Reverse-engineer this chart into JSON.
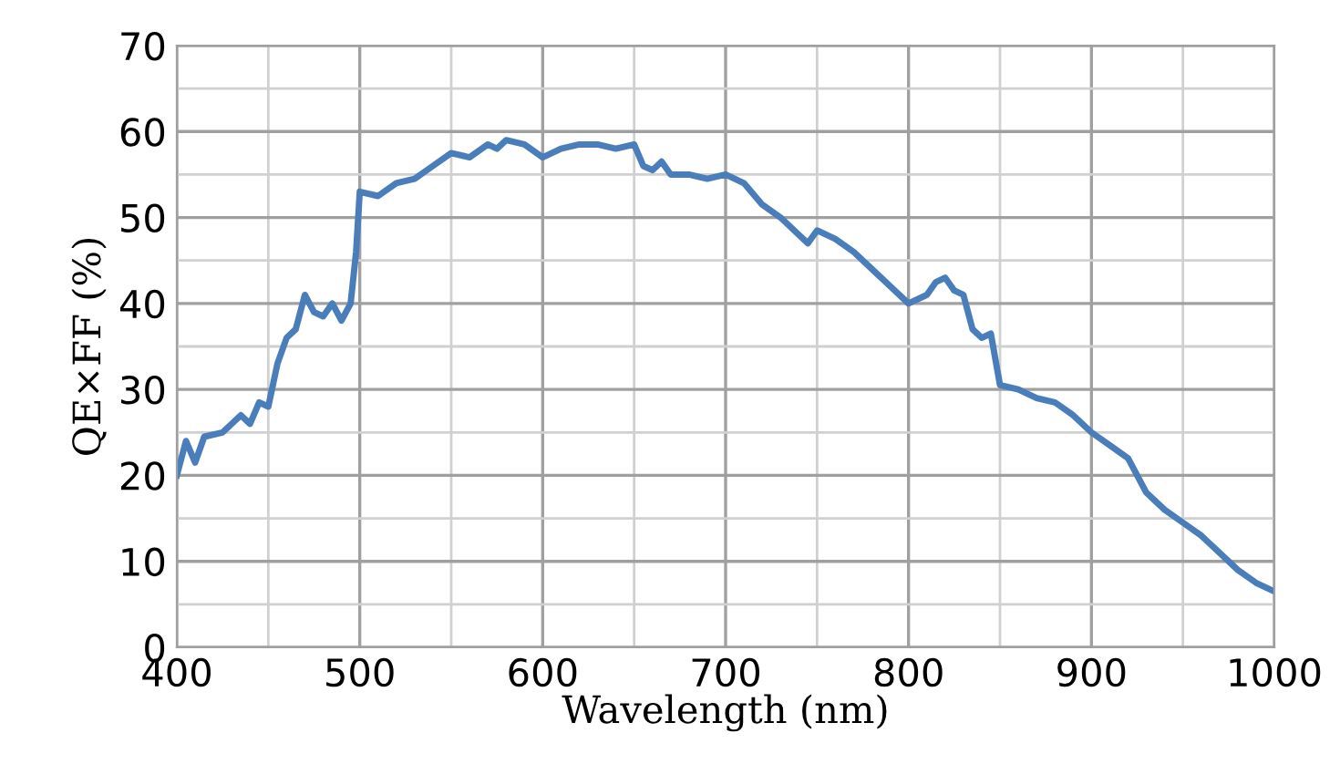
{
  "chart_data": {
    "type": "line",
    "xlabel": "Wavelength (nm)",
    "ylabel": "QE×FF (%)",
    "xlim": [
      400,
      1000
    ],
    "xticks": [
      400,
      500,
      600,
      700,
      800,
      900,
      1000
    ],
    "ylim": [
      0,
      70
    ],
    "yticks": [
      0,
      10,
      20,
      30,
      40,
      50,
      60,
      70
    ],
    "grid": true,
    "series": [
      {
        "color": "#4a7ebb",
        "x": [
          400,
          405,
          410,
          415,
          425,
          435,
          440,
          445,
          450,
          455,
          460,
          465,
          470,
          475,
          480,
          485,
          490,
          495,
          498,
          500,
          510,
          520,
          530,
          540,
          550,
          560,
          570,
          575,
          580,
          590,
          600,
          610,
          620,
          630,
          640,
          650,
          655,
          660,
          665,
          670,
          680,
          690,
          700,
          710,
          720,
          730,
          740,
          745,
          750,
          760,
          770,
          780,
          790,
          800,
          810,
          815,
          820,
          825,
          830,
          835,
          840,
          845,
          850,
          860,
          870,
          880,
          890,
          900,
          910,
          920,
          930,
          940,
          950,
          960,
          970,
          980,
          990,
          1000
        ],
        "values": [
          20,
          24,
          21.5,
          24.5,
          25,
          27,
          26,
          28.5,
          28,
          33,
          36,
          37,
          41,
          39,
          38.5,
          40,
          38,
          40,
          46,
          53,
          52.5,
          54,
          54.5,
          56,
          57.5,
          57,
          58.5,
          58,
          59,
          58.5,
          57,
          58,
          58.5,
          58.5,
          58,
          58.5,
          56,
          55.5,
          56.5,
          55,
          55,
          54.5,
          55,
          54,
          51.5,
          50,
          48,
          47,
          48.5,
          47.5,
          46,
          44,
          42,
          40,
          41,
          42.5,
          43,
          41.5,
          41,
          37,
          36,
          36.5,
          30.5,
          30,
          29,
          28.5,
          27,
          25,
          23.5,
          22,
          18,
          16,
          14.5,
          13,
          11,
          9,
          7.5,
          6.5
        ]
      }
    ]
  }
}
